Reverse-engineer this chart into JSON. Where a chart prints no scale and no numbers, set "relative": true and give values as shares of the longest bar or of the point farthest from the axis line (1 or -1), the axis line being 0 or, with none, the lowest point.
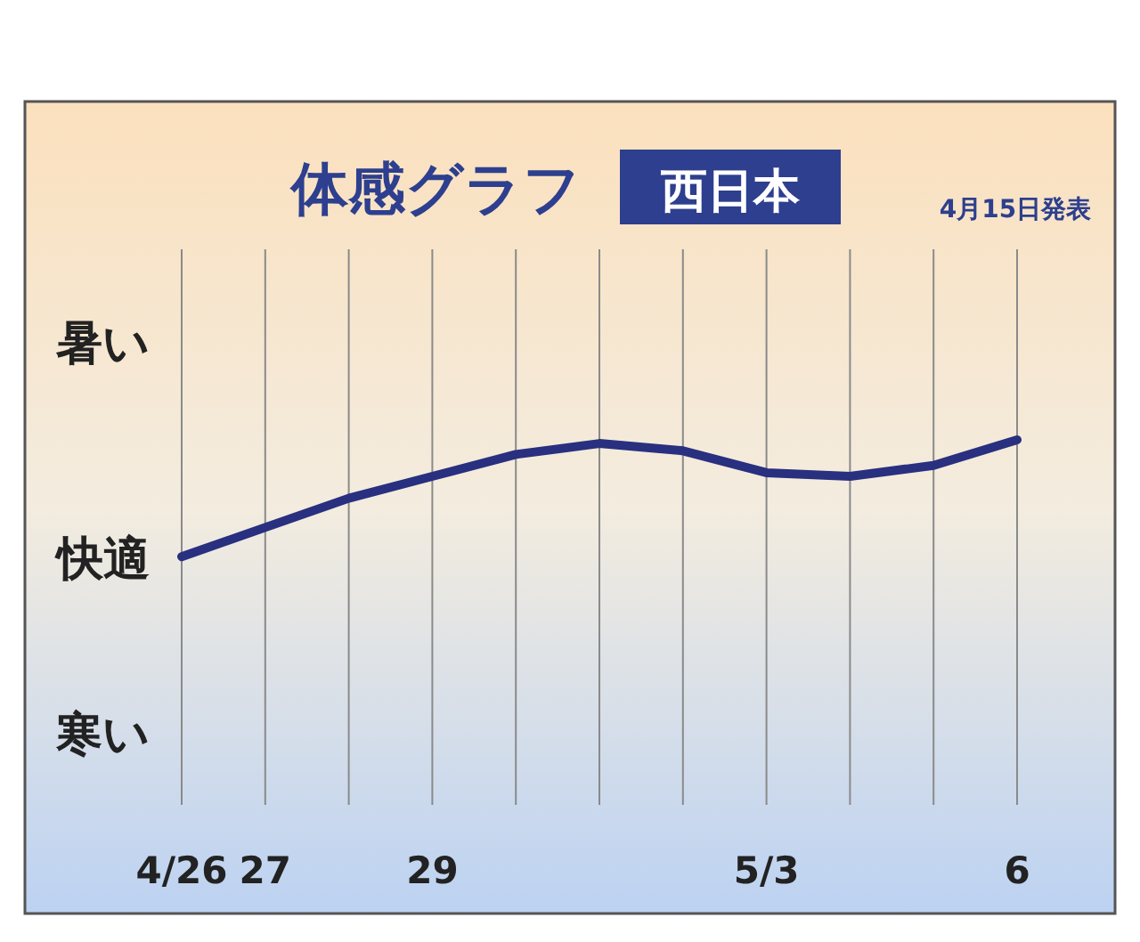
{
  "chart_data": {
    "type": "line",
    "title": "体感グラフ",
    "subtitle": "西日本",
    "relative": true,
    "categories": [
      "4/26",
      "27",
      null,
      "29",
      null,
      null,
      null,
      "5/3",
      null,
      null,
      "6"
    ],
    "series": [
      {
        "color": "#28307f",
        "values": [
          0.68,
          0.76,
          0.84,
          0.9,
          0.96,
          0.99,
          0.97,
          0.91,
          0.9,
          0.93,
          1
        ]
      }
    ],
    "annotations": [
      "4月15日発表",
      "暑い",
      "快適",
      "寒い"
    ],
    "grid": "x",
    "marker": "none",
    "line_style": "solid"
  }
}
